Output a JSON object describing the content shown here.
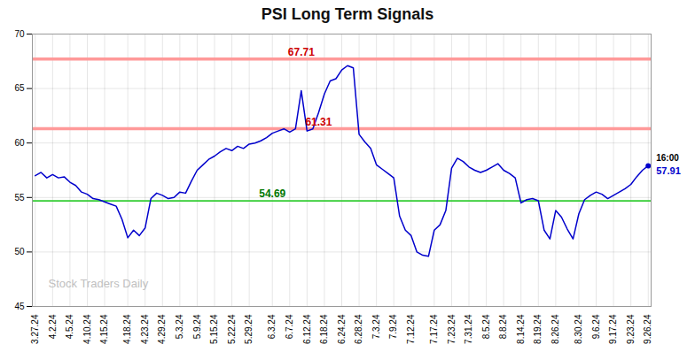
{
  "chart_data": {
    "type": "line",
    "title": "PSI Long Term Signals",
    "color": "#0000cc",
    "grid": true,
    "ylim": [
      45,
      70
    ],
    "yticks": [
      45,
      50,
      55,
      60,
      65,
      70
    ],
    "categories": [
      "3.27.24",
      null,
      null,
      "4.2.24",
      null,
      null,
      "4.5.24",
      null,
      null,
      "4.10.24",
      null,
      null,
      "4.15.24",
      null,
      null,
      null,
      "4.18.24",
      null,
      null,
      "4.23.24",
      null,
      null,
      "4.29.24",
      null,
      null,
      "5.3.24",
      null,
      null,
      "5.9.24",
      null,
      null,
      "5.15.24",
      null,
      null,
      "5.22.24",
      null,
      null,
      "5.29.24",
      null,
      null,
      null,
      "6.3.24",
      null,
      null,
      "6.7.24",
      null,
      null,
      "6.12.24",
      null,
      null,
      "6.18.24",
      null,
      null,
      "6.24.24",
      null,
      null,
      "6.28.24",
      null,
      null,
      "7.3.24",
      null,
      null,
      "7.9.24",
      null,
      null,
      "7.12.24",
      null,
      null,
      null,
      "7.17.24",
      null,
      null,
      "7.23.24",
      null,
      null,
      "7.31.24",
      null,
      null,
      "8.5.24",
      null,
      null,
      "8.8.24",
      null,
      null,
      "8.14.24",
      null,
      null,
      "8.19.24",
      null,
      null,
      "8.26.24",
      null,
      null,
      null,
      "8.30.24",
      null,
      null,
      "9.6.24",
      null,
      null,
      "9.17.24",
      null,
      null,
      "9.23.24",
      null,
      null,
      "9.26.24"
    ],
    "values": [
      57.0,
      57.3,
      56.8,
      57.1,
      56.8,
      56.9,
      56.4,
      56.1,
      55.5,
      55.3,
      54.9,
      54.8,
      54.6,
      54.4,
      54.2,
      53.0,
      51.3,
      52.0,
      51.5,
      52.2,
      54.9,
      55.4,
      55.2,
      54.9,
      55.0,
      55.5,
      55.4,
      56.5,
      57.5,
      58.0,
      58.5,
      58.8,
      59.2,
      59.5,
      59.3,
      59.7,
      59.5,
      59.9,
      60.0,
      60.2,
      60.5,
      60.9,
      61.1,
      61.3,
      61.0,
      61.3,
      64.8,
      61.1,
      61.3,
      62.8,
      64.5,
      65.7,
      65.9,
      66.7,
      67.1,
      66.9,
      60.8,
      60.1,
      59.5,
      58.0,
      57.6,
      57.2,
      56.8,
      53.3,
      52.0,
      51.5,
      50.0,
      49.7,
      49.6,
      52.0,
      52.5,
      53.8,
      57.7,
      58.6,
      58.3,
      57.8,
      57.5,
      57.3,
      57.5,
      57.8,
      58.1,
      57.5,
      57.2,
      56.8,
      54.5,
      54.8,
      54.9,
      54.7,
      52.0,
      51.2,
      53.8,
      53.2,
      52.1,
      51.2,
      53.5,
      54.8,
      55.2,
      55.5,
      55.3,
      54.9,
      55.2,
      55.5,
      55.8,
      56.2,
      56.9,
      57.5,
      57.91
    ],
    "hlines": [
      {
        "value": 67.71,
        "label": "67.71",
        "color": "#ff9999",
        "label_color": "#cc0000"
      },
      {
        "value": 61.31,
        "label": "61.31",
        "color": "#ff9999",
        "label_color": "#cc0000"
      },
      {
        "value": 54.69,
        "label": "54.69",
        "color": "#33cc33",
        "label_color": "#007700"
      }
    ],
    "annotations": [
      {
        "text": "16:00",
        "color": "#000000"
      },
      {
        "text": "57.91",
        "color": "#0000cc"
      },
      {
        "text": "Stock Traders Daily",
        "color": "#c0c0c0"
      }
    ]
  }
}
